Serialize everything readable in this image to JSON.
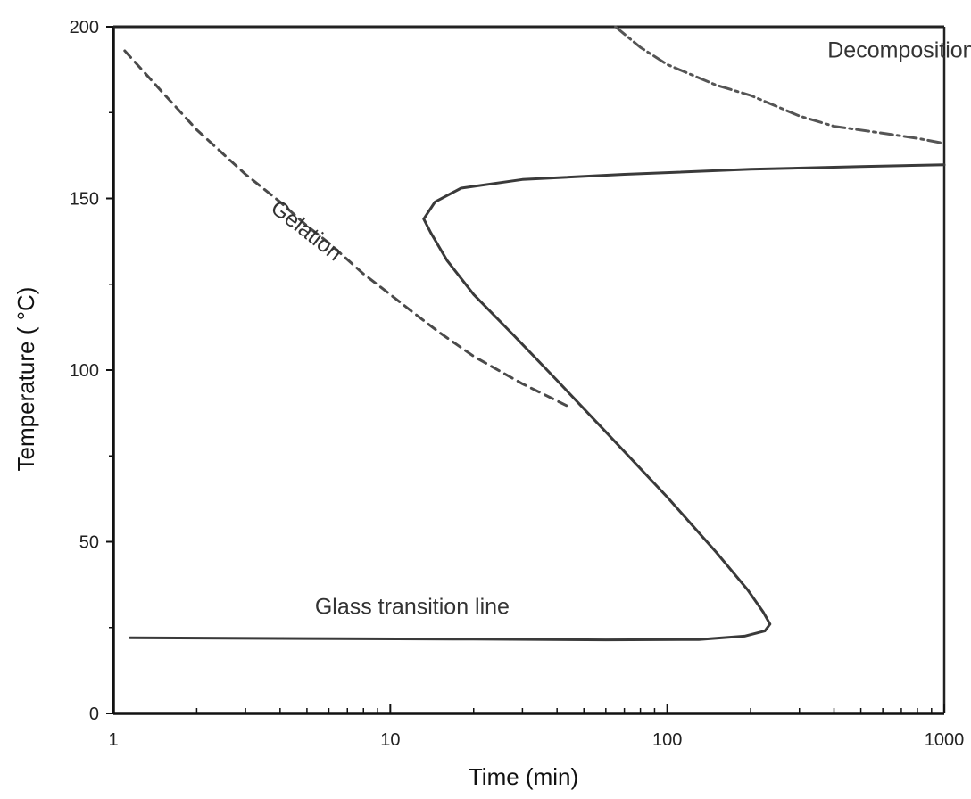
{
  "chart_data": {
    "type": "line",
    "title": "",
    "xlabel": "Time (min)",
    "ylabel": "Temperature ( °C)",
    "xscale": "log",
    "xlim": [
      1,
      1000
    ],
    "ylim": [
      0,
      200
    ],
    "x_ticks": [
      1,
      10,
      100,
      1000
    ],
    "x_tick_labels": [
      "1",
      "10",
      "100",
      "1000"
    ],
    "y_ticks": [
      0,
      50,
      100,
      150,
      200
    ],
    "y_tick_labels": [
      "0",
      "50",
      "100",
      "150",
      "200"
    ],
    "grid": false,
    "legend": "none",
    "series": [
      {
        "style": "solid",
        "color": "#3a3a3a",
        "points": [
          [
            1.15,
            22
          ],
          [
            5,
            21.8
          ],
          [
            20,
            21.6
          ],
          [
            60,
            21.4
          ],
          [
            130,
            21.5
          ],
          [
            190,
            22.5
          ],
          [
            225,
            24
          ],
          [
            235,
            26
          ],
          [
            222,
            29.5
          ],
          [
            195,
            36
          ],
          [
            150,
            47
          ],
          [
            100,
            63
          ],
          [
            60,
            82
          ],
          [
            40,
            97
          ],
          [
            28,
            110
          ],
          [
            20,
            122
          ],
          [
            16,
            132
          ],
          [
            14,
            140
          ],
          [
            13.2,
            144
          ],
          [
            14.5,
            149
          ],
          [
            18,
            153
          ],
          [
            30,
            155.5
          ],
          [
            70,
            157
          ],
          [
            200,
            158.5
          ],
          [
            500,
            159.3
          ],
          [
            1000,
            159.8
          ]
        ]
      },
      {
        "style": "dashed",
        "color": "#4a4a4a",
        "points": [
          [
            1.1,
            193
          ],
          [
            1.5,
            181
          ],
          [
            2,
            170
          ],
          [
            3,
            157
          ],
          [
            4,
            149
          ],
          [
            5,
            142
          ],
          [
            6,
            137
          ],
          [
            8,
            128
          ],
          [
            10,
            122
          ],
          [
            12,
            117
          ],
          [
            15,
            111
          ],
          [
            20,
            104
          ],
          [
            30,
            96
          ],
          [
            45,
            89
          ]
        ]
      },
      {
        "style": "dash-dot",
        "color": "#555555",
        "points": [
          [
            65,
            200
          ],
          [
            80,
            194
          ],
          [
            100,
            189
          ],
          [
            150,
            183
          ],
          [
            200,
            180
          ],
          [
            300,
            174
          ],
          [
            400,
            171
          ],
          [
            600,
            169
          ],
          [
            800,
            167.5
          ],
          [
            1000,
            166
          ]
        ]
      }
    ],
    "annotations": [
      {
        "text": "Decomposition",
        "x": 700,
        "y": 191
      },
      {
        "text": "Gelation",
        "x": 4.8,
        "y": 139,
        "rotation": 38
      },
      {
        "text": "Glass transition line",
        "x": 12,
        "y": 29
      }
    ]
  }
}
